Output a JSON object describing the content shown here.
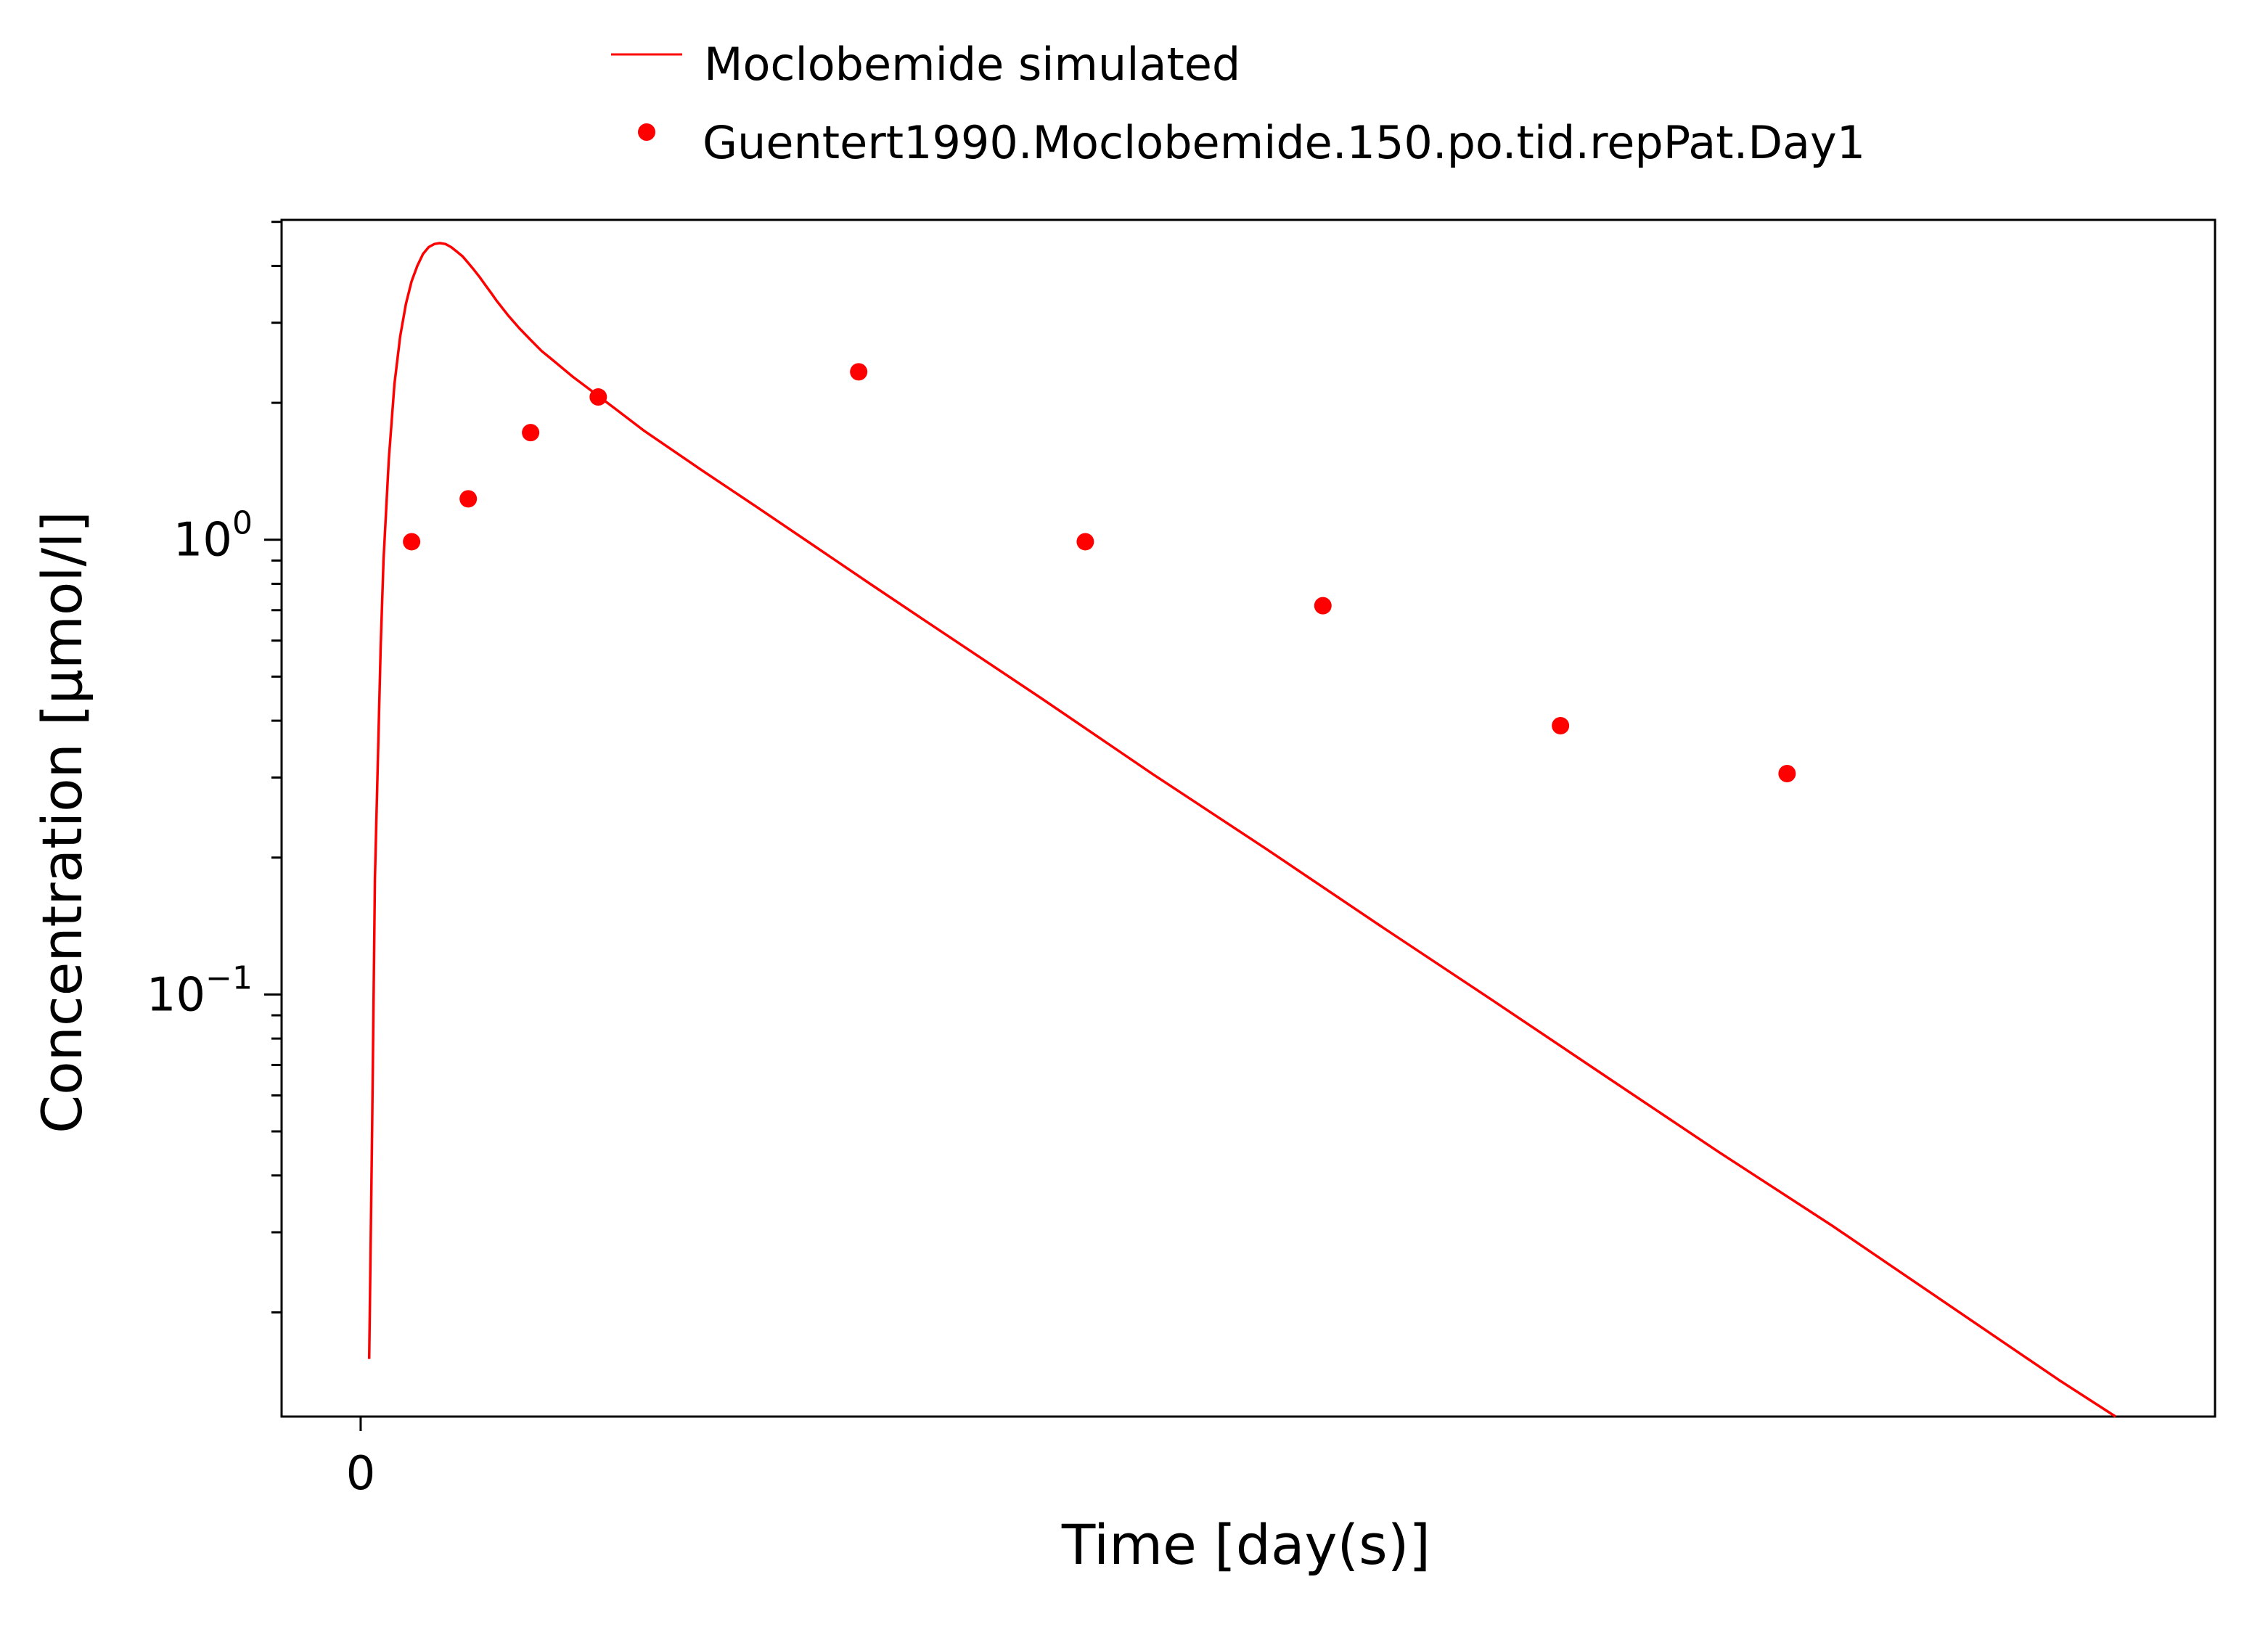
{
  "chart_data": {
    "type": "line",
    "title": "",
    "xlabel": "Time [day(s)]",
    "ylabel": "Concentration [µmol/l]",
    "xlim": [
      -0.0194,
      0.455
    ],
    "ylim": [
      0.0118,
      5.05
    ],
    "yscale": "log",
    "grid": false,
    "legend_position": "top",
    "x_ticks": [
      {
        "value": 0,
        "label": "0"
      }
    ],
    "y_ticks": [
      {
        "value": 1,
        "base": "10",
        "exp": "0"
      },
      {
        "value": 0.1,
        "base": "10",
        "exp": "−1"
      }
    ],
    "series": [
      {
        "name": "Moclobemide simulated",
        "style": "line",
        "color": "#ff0000",
        "x": [
          0.0021,
          0.0028,
          0.0035,
          0.0042,
          0.0049,
          0.0056,
          0.0069,
          0.0083,
          0.0097,
          0.0111,
          0.0125,
          0.0139,
          0.0153,
          0.0167,
          0.0181,
          0.0194,
          0.0208,
          0.0222,
          0.0236,
          0.025,
          0.0264,
          0.0278,
          0.0292,
          0.0306,
          0.0319,
          0.0333,
          0.0361,
          0.0389,
          0.0417,
          0.0444,
          0.0472,
          0.0521,
          0.0556,
          0.0625,
          0.0694,
          0.0833,
          0.0972,
          0.1111,
          0.125,
          0.1389,
          0.1667,
          0.1944,
          0.2222,
          0.25,
          0.2778,
          0.3056,
          0.3333,
          0.3611,
          0.375,
          0.4167,
          0.4306
        ],
        "y": [
          0.0158,
          0.05,
          0.18,
          0.32,
          0.58,
          0.9,
          1.5,
          2.2,
          2.8,
          3.3,
          3.7,
          4.0,
          4.25,
          4.4,
          4.47,
          4.49,
          4.47,
          4.4,
          4.3,
          4.2,
          4.06,
          3.92,
          3.78,
          3.63,
          3.5,
          3.36,
          3.12,
          2.92,
          2.75,
          2.6,
          2.48,
          2.28,
          2.16,
          1.94,
          1.74,
          1.43,
          1.18,
          0.972,
          0.8,
          0.66,
          0.45,
          0.305,
          0.209,
          0.142,
          0.097,
          0.066,
          0.045,
          0.031,
          0.0255,
          0.0142,
          0.0118
        ]
      },
      {
        "name": "Guentert1990.Moclobemide.150.po.tid.repPat.Day1",
        "style": "scatter",
        "color": "#ff0000",
        "x": [
          0.0125,
          0.0264,
          0.0417,
          0.0583,
          0.1222,
          0.1778,
          0.2361,
          0.2944,
          0.35
        ],
        "y": [
          0.99,
          1.23,
          1.72,
          2.06,
          2.34,
          0.99,
          0.716,
          0.39,
          0.306
        ]
      }
    ]
  }
}
